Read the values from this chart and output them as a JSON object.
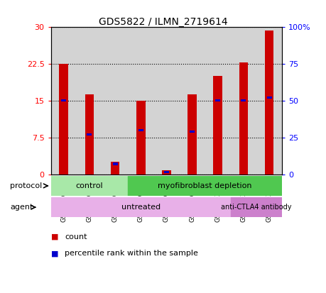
{
  "title": "GDS5822 / ILMN_2719614",
  "samples": [
    "GSM1276599",
    "GSM1276600",
    "GSM1276601",
    "GSM1276602",
    "GSM1276603",
    "GSM1276604",
    "GSM1303940",
    "GSM1303941",
    "GSM1303942"
  ],
  "counts": [
    22.5,
    16.2,
    2.5,
    15.0,
    0.8,
    16.2,
    20.0,
    22.7,
    29.2
  ],
  "percentiles": [
    50.0,
    27.0,
    7.0,
    30.0,
    1.5,
    29.0,
    50.0,
    50.0,
    52.0
  ],
  "ylim_left": [
    0,
    30
  ],
  "ylim_right": [
    0,
    100
  ],
  "yticks_left": [
    0,
    7.5,
    15,
    22.5,
    30
  ],
  "yticks_right": [
    0,
    25,
    50,
    75,
    100
  ],
  "ytick_labels_left": [
    "0",
    "7.5",
    "15",
    "22.5",
    "30"
  ],
  "ytick_labels_right": [
    "0",
    "25",
    "50",
    "75",
    "100%"
  ],
  "bar_color": "#cc0000",
  "percentile_color": "#0000cc",
  "bar_width": 0.35,
  "protocol_control_color": "#a8e8a8",
  "protocol_myofi_color": "#50c850",
  "agent_untreated_color": "#e8b0e8",
  "agent_anti_color": "#cc80cc",
  "bg_color": "#d3d3d3",
  "legend_count_color": "#cc0000",
  "legend_percentile_color": "#0000cc"
}
